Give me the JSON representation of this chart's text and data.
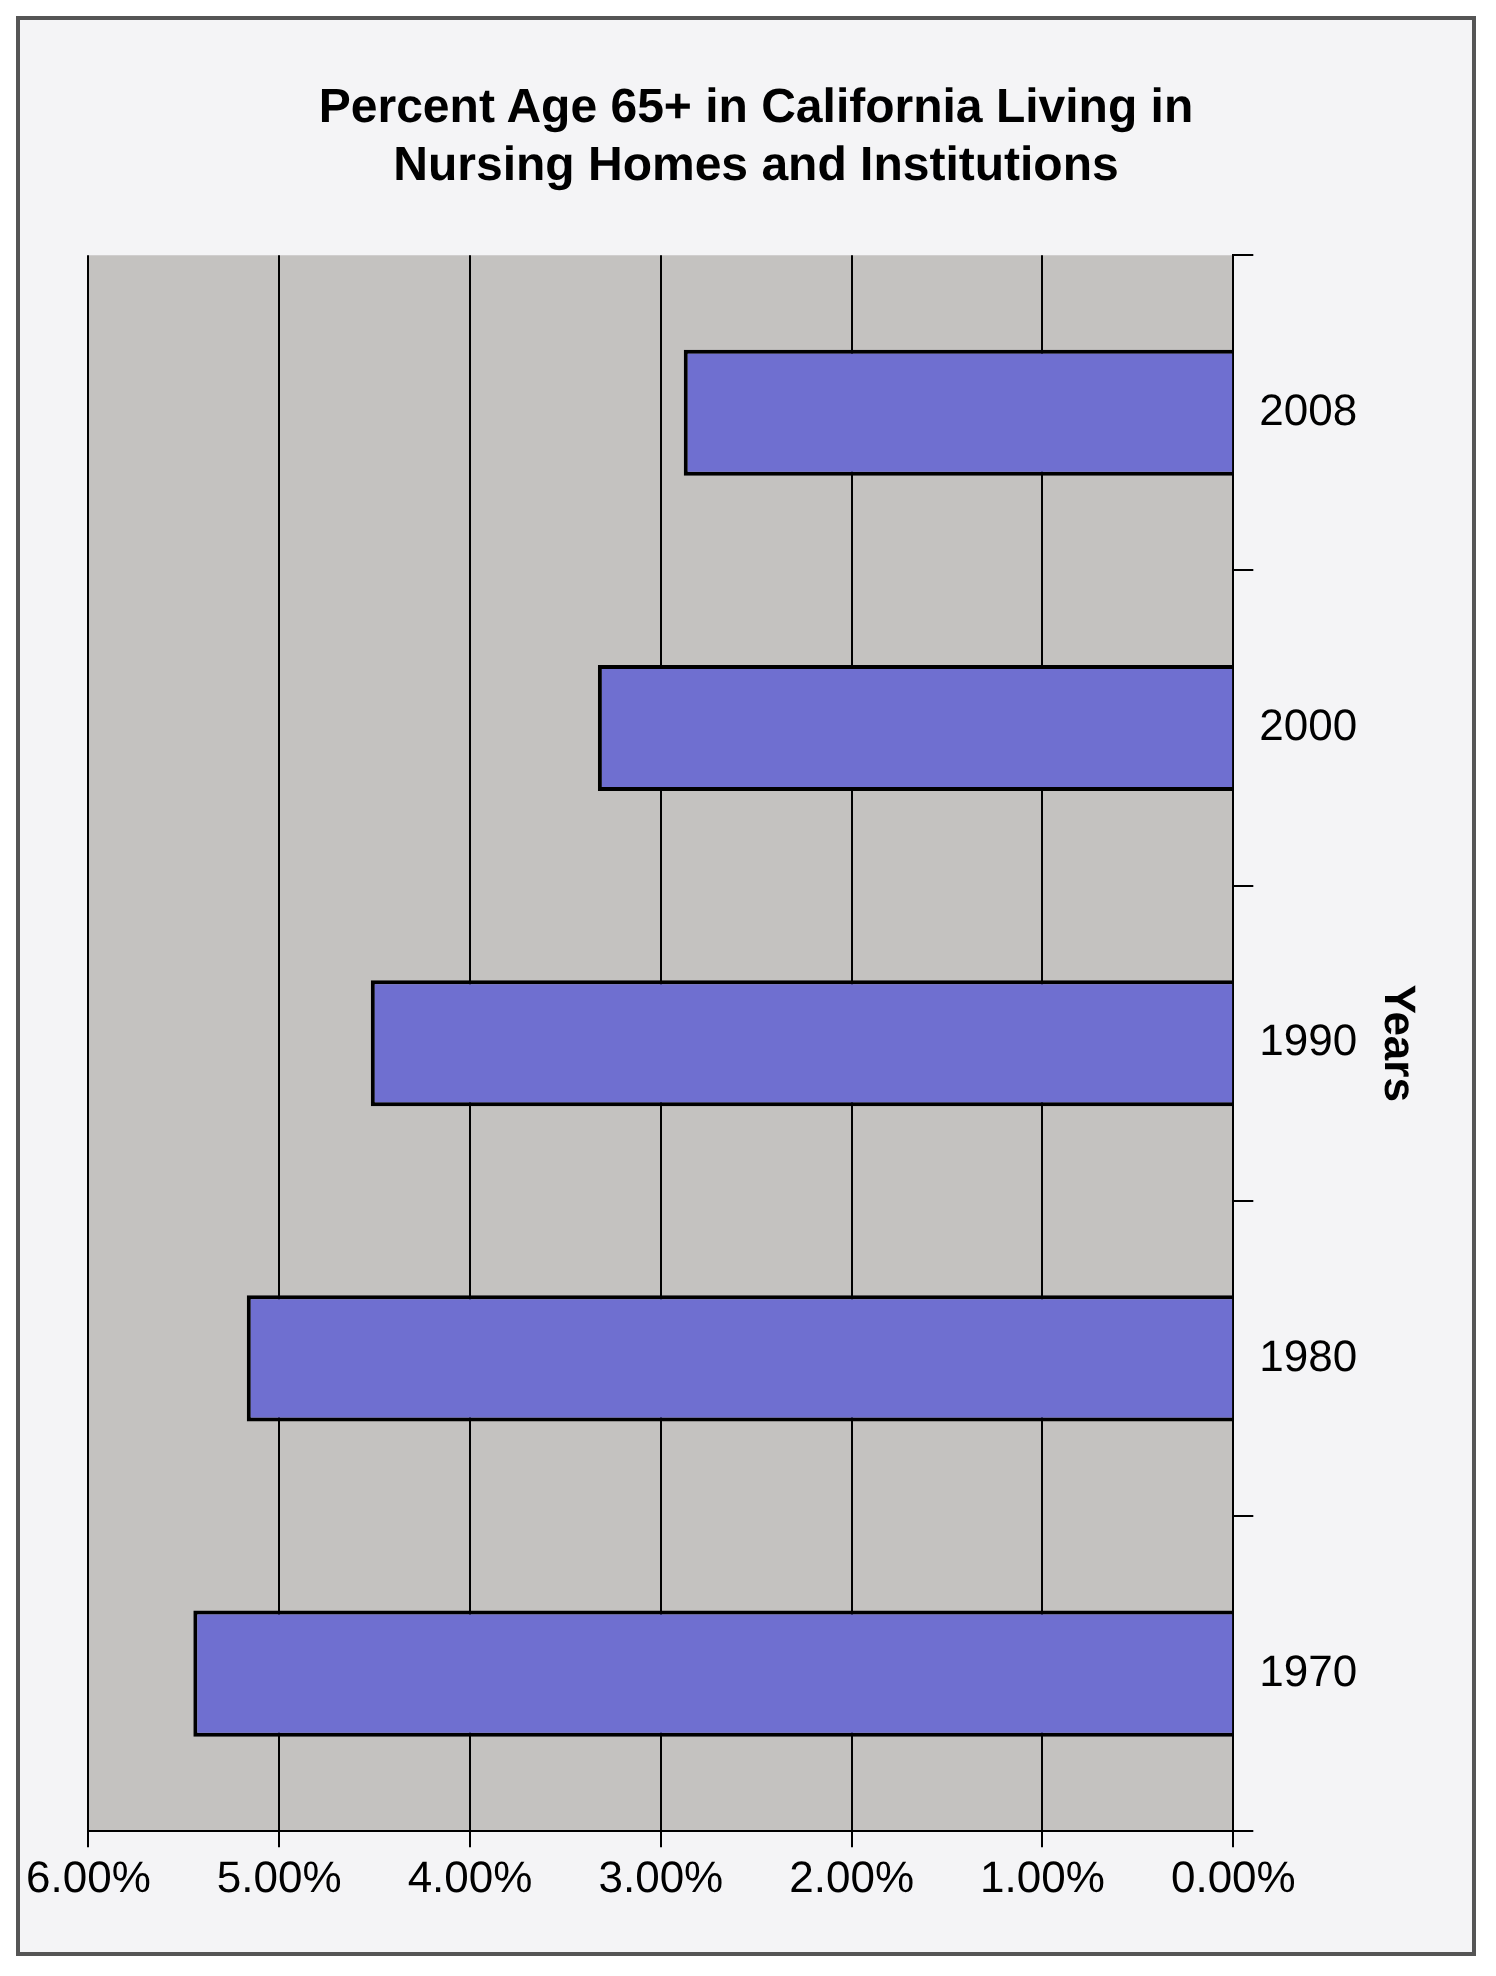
{
  "chart_data": {
    "type": "bar",
    "orientation": "horizontal",
    "title": [
      "Percent Age 65+ in California Living in",
      "Nursing Homes and Institutions"
    ],
    "ylabel": "Years",
    "categories": [
      "2008",
      "2000",
      "1990",
      "1980",
      "1970"
    ],
    "values": [
      2.88,
      3.33,
      4.52,
      5.17,
      5.45
    ],
    "color": "#6f6fd0",
    "xlim": [
      6,
      0
    ],
    "xticks": [
      {
        "value": 6,
        "label": "6.00%"
      },
      {
        "value": 5,
        "label": "5.00%"
      },
      {
        "value": 4,
        "label": "4.00%"
      },
      {
        "value": 3,
        "label": "3.00%"
      },
      {
        "value": 2,
        "label": "2.00%"
      },
      {
        "value": 1,
        "label": "1.00%"
      },
      {
        "value": 0,
        "label": "0.00%"
      }
    ],
    "grid": "x",
    "legend": false
  }
}
